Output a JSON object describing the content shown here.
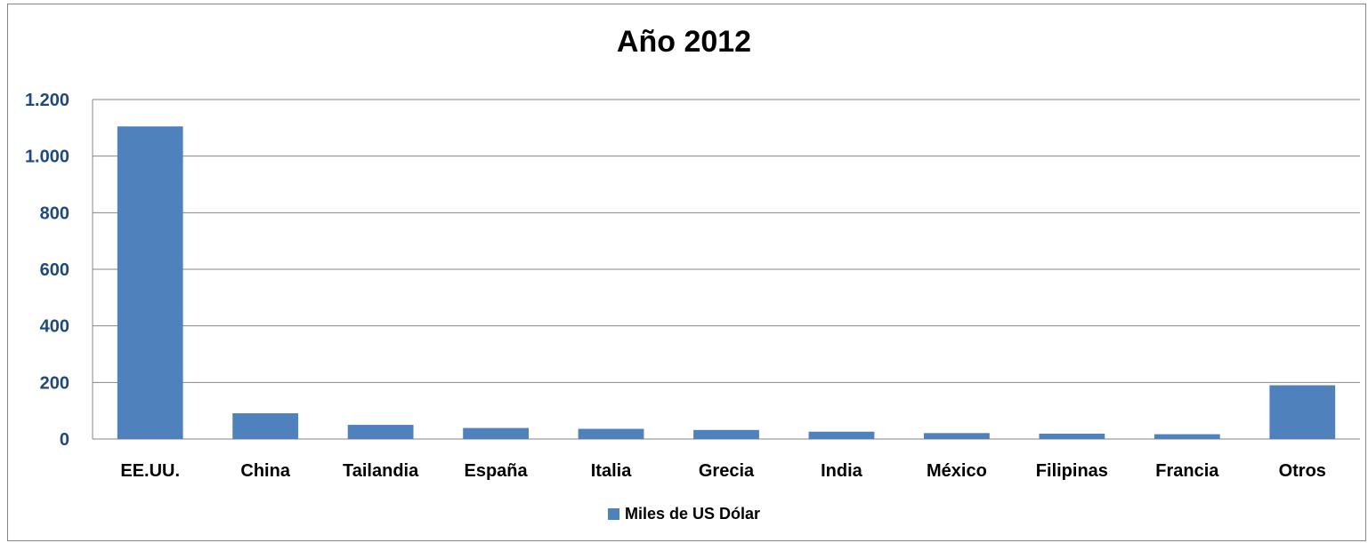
{
  "chart_data": {
    "type": "bar",
    "title": "Año 2012",
    "xlabel": "",
    "ylabel": "",
    "categories": [
      "EE.UU.",
      "China",
      "Tailandia",
      "España",
      "Italia",
      "Grecia",
      "India",
      "México",
      "Filipinas",
      "Francia",
      "Otros"
    ],
    "series": [
      {
        "name": "Miles de US Dólar",
        "values": [
          1105,
          91,
          50,
          39,
          36,
          32,
          26,
          21,
          19,
          17,
          190
        ]
      }
    ],
    "ylim": [
      0,
      1200
    ],
    "yticks": [
      0,
      200,
      400,
      600,
      800,
      1000,
      1200
    ],
    "ytick_labels": [
      "0",
      "200",
      "400",
      "600",
      "800",
      "1.000",
      "1.200"
    ],
    "grid": true,
    "legend_position": "bottom"
  },
  "colors": {
    "bar": "#4F81BD",
    "tick_label": "#1F497D",
    "gridline": "#868686"
  }
}
